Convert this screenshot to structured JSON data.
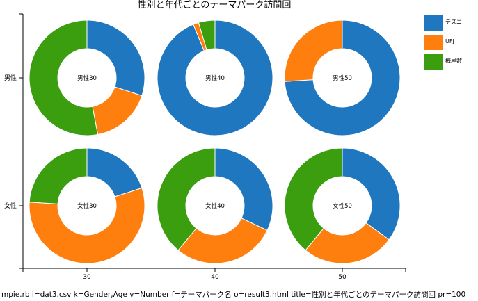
{
  "chart_data": {
    "type": "donut-grid",
    "title": "性別と年代ごとのテーマパーク訪問回",
    "x_ticks": [
      "30",
      "40",
      "50"
    ],
    "y_ticks": [
      "男性",
      "女性"
    ],
    "legend": [
      {
        "name": "デズニ",
        "color": "#1f77c0"
      },
      {
        "name": "UFJ",
        "color": "#ff7f0e"
      },
      {
        "name": "梅屋敷",
        "color": "#3a9e0e"
      }
    ],
    "panels": [
      {
        "row": 0,
        "col": 0,
        "label": "男性30",
        "values": [
          30,
          17,
          53
        ]
      },
      {
        "row": 0,
        "col": 1,
        "label": "男性40",
        "values": [
          92,
          1.5,
          4.5
        ]
      },
      {
        "row": 0,
        "col": 2,
        "label": "男性50",
        "values": [
          74,
          26,
          0
        ]
      },
      {
        "row": 1,
        "col": 0,
        "label": "女性30",
        "values": [
          20,
          56,
          24
        ]
      },
      {
        "row": 1,
        "col": 1,
        "label": "女性40",
        "values": [
          32,
          29,
          39
        ]
      },
      {
        "row": 1,
        "col": 2,
        "label": "女性50",
        "values": [
          35,
          26,
          39
        ]
      }
    ]
  },
  "caption": "mpie.rb i=dat3.csv k=Gender,Age v=Number f=テーマパーク名 o=result3.html title=性別と年代ごとのテーマパーク訪問回 pr=100"
}
